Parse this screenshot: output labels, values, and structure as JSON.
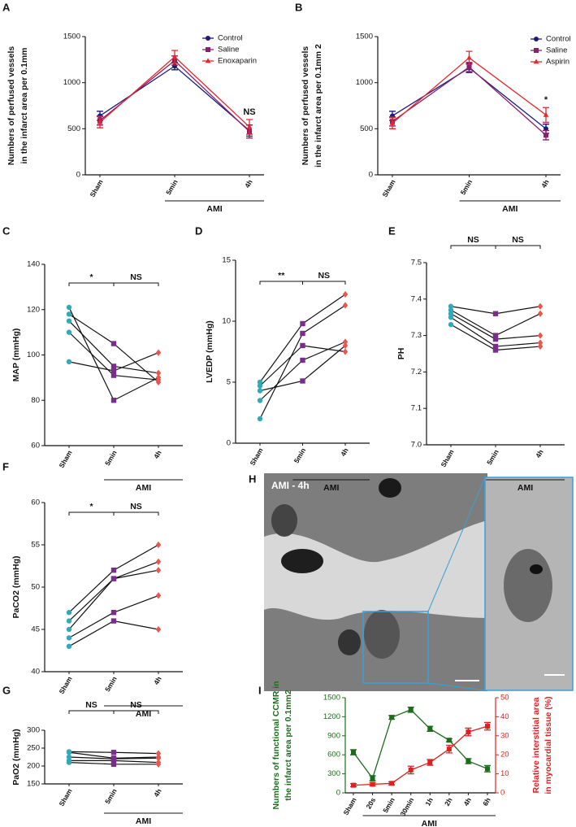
{
  "chart_data": [
    {
      "type": "line",
      "letter": "A",
      "ylabel": [
        "Numbers of perfused vessels",
        "in the infarct area per 0.1mm"
      ],
      "categories": [
        "Sham",
        "5min",
        "4h"
      ],
      "group_label": "AMI",
      "annotation": "NS",
      "ylim": [
        0,
        1500
      ],
      "yticks": [
        0,
        500,
        1000,
        1500
      ],
      "legend": "top-right",
      "series": [
        {
          "name": "Control",
          "color": "#1a1a7e",
          "marker": "circle",
          "values": [
            640,
            1180,
            480
          ],
          "errors": [
            50,
            40,
            60
          ]
        },
        {
          "name": "Saline",
          "color": "#8b1f6b",
          "marker": "square",
          "values": [
            590,
            1240,
            470
          ],
          "errors": [
            50,
            50,
            70
          ]
        },
        {
          "name": "Enoxaparin",
          "color": "#e8262b",
          "marker": "triangle",
          "values": [
            570,
            1280,
            520
          ],
          "errors": [
            60,
            70,
            80
          ]
        }
      ]
    },
    {
      "type": "line",
      "letter": "B",
      "ylabel": [
        "Numbers of perfused vessels",
        "in the infarct area per 0.1mm 2"
      ],
      "categories": [
        "Sham",
        "5min",
        "4h"
      ],
      "group_label": "AMI",
      "annotation": "*",
      "ylim": [
        0,
        1500
      ],
      "yticks": [
        0,
        500,
        1000,
        1500
      ],
      "legend": "top-right",
      "series": [
        {
          "name": "Control",
          "color": "#1a1a7e",
          "marker": "circle",
          "values": [
            640,
            1160,
            500
          ],
          "errors": [
            50,
            50,
            50
          ]
        },
        {
          "name": "Saline",
          "color": "#8b1f6b",
          "marker": "square",
          "values": [
            580,
            1170,
            430
          ],
          "errors": [
            50,
            50,
            50
          ]
        },
        {
          "name": "Aspirin",
          "color": "#e8262b",
          "marker": "triangle",
          "values": [
            560,
            1270,
            650
          ],
          "errors": [
            60,
            70,
            80
          ]
        }
      ]
    },
    {
      "type": "paired",
      "letter": "C",
      "ylabel": [
        "MAP (mmHg)"
      ],
      "categories": [
        "Sham",
        "5min",
        "4h"
      ],
      "group_label": "AMI",
      "significance": [
        "*",
        "NS"
      ],
      "ylim": [
        60,
        140
      ],
      "yticks": [
        60,
        80,
        100,
        120,
        140
      ],
      "point_colors": [
        "#33a9b8",
        "#7b2d8e",
        "#e8564e"
      ],
      "markers": [
        "circle",
        "square",
        "diamond"
      ],
      "subjects": [
        [
          121,
          80,
          90
        ],
        [
          118,
          105,
          88
        ],
        [
          115,
          95,
          92
        ],
        [
          110,
          91,
          89
        ],
        [
          97,
          93,
          101
        ]
      ]
    },
    {
      "type": "paired",
      "letter": "D",
      "ylabel": [
        "LVEDP (mmHg)"
      ],
      "categories": [
        "Sham",
        "5min",
        "4h"
      ],
      "group_label": "AMI",
      "significance": [
        "**",
        "NS"
      ],
      "ylim": [
        0,
        15
      ],
      "yticks": [
        0,
        5,
        10,
        15
      ],
      "point_colors": [
        "#33a9b8",
        "#7b2d8e",
        "#e8564e"
      ],
      "markers": [
        "circle",
        "square",
        "diamond"
      ],
      "subjects": [
        [
          5,
          9.8,
          12.2
        ],
        [
          4.7,
          8,
          7.5
        ],
        [
          4.3,
          5.1,
          8
        ],
        [
          3.5,
          6.8,
          8.3
        ],
        [
          2,
          9,
          11.3
        ]
      ]
    },
    {
      "type": "paired",
      "letter": "E",
      "ylabel": [
        "PH"
      ],
      "categories": [
        "Sham",
        "5min",
        "4h"
      ],
      "group_label": "AMI",
      "significance": [
        "NS",
        "NS"
      ],
      "ylim": [
        7,
        7.5
      ],
      "yticks": [
        {
          "value": 7,
          "label": "7.0"
        },
        7.1,
        7.2,
        7.3,
        7.4,
        7.5
      ],
      "point_colors": [
        "#33a9b8",
        "#7b2d8e",
        "#e8564e"
      ],
      "markers": [
        "circle",
        "square",
        "diamond"
      ],
      "subjects": [
        [
          7.38,
          7.36,
          7.38
        ],
        [
          7.37,
          7.3,
          7.36
        ],
        [
          7.36,
          7.29,
          7.3
        ],
        [
          7.35,
          7.27,
          7.28
        ],
        [
          7.33,
          7.26,
          7.27
        ]
      ]
    },
    {
      "type": "paired",
      "letter": "F",
      "ylabel": [
        "PaCO2 (mmHg)"
      ],
      "categories": [
        "Sham",
        "5min",
        "4h"
      ],
      "group_label": "AMI",
      "significance": [
        "*",
        "NS"
      ],
      "ylim": [
        40,
        60
      ],
      "yticks": [
        40,
        45,
        50,
        55,
        60
      ],
      "point_colors": [
        "#33a9b8",
        "#7b2d8e",
        "#e8564e"
      ],
      "markers": [
        "circle",
        "square",
        "diamond"
      ],
      "subjects": [
        [
          47,
          52,
          55
        ],
        [
          46,
          51,
          53
        ],
        [
          45,
          51,
          52
        ],
        [
          44,
          47,
          49
        ],
        [
          43,
          46,
          45
        ]
      ]
    },
    {
      "type": "paired",
      "letter": "G",
      "ylabel": [
        "PaO2 (mmHg)"
      ],
      "categories": [
        "Sham",
        "5min",
        "4h"
      ],
      "group_label": "AMI",
      "significance": [
        "NS",
        "NS"
      ],
      "ylim": [
        150,
        300
      ],
      "yticks": [
        150,
        200,
        250,
        300
      ],
      "point_colors": [
        "#33a9b8",
        "#7b2d8e",
        "#e8564e"
      ],
      "markers": [
        "circle",
        "square",
        "diamond"
      ],
      "subjects": [
        [
          240,
          238,
          235
        ],
        [
          238,
          222,
          225
        ],
        [
          225,
          220,
          222
        ],
        [
          215,
          215,
          210
        ],
        [
          210,
          205,
          205
        ]
      ]
    },
    {
      "type": "line",
      "letter": "I",
      "ylabel": [
        "Numbers of functional CCMR in",
        "the infarct area per 0.1mm2"
      ],
      "y2label": [
        "Relative interstitial area",
        "in myocardial tissue (%)"
      ],
      "categories": [
        "Sham",
        "20s",
        "5min",
        "30min",
        "1h",
        "2h",
        "4h",
        "6h"
      ],
      "group_label": "AMI",
      "ylim": [
        0,
        1500
      ],
      "yticks": [
        0,
        300,
        600,
        900,
        1200,
        1500
      ],
      "y2lim": [
        0,
        50
      ],
      "y2ticks": [
        0,
        10,
        20,
        30,
        40,
        50
      ],
      "series": [
        {
          "color": "#1a6e1a",
          "marker": "square",
          "values": [
            640,
            230,
            1190,
            1310,
            1010,
            830,
            500,
            380
          ],
          "errors": [
            40,
            40,
            30,
            40,
            40,
            25,
            40,
            50
          ]
        },
        {
          "color": "#e02020",
          "marker": "square",
          "axis": "y2",
          "values": [
            4,
            4.5,
            5,
            12,
            16,
            23,
            32,
            35
          ],
          "errors": [
            0.8,
            0.8,
            0.8,
            2,
            1.5,
            2,
            2,
            2
          ]
        }
      ]
    }
  ],
  "image": {
    "letter": "H",
    "label": "AMI - 4h"
  }
}
